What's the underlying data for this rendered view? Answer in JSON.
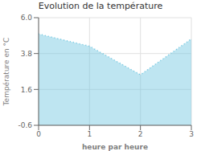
{
  "chart_data": {
    "type": "area",
    "title": "Evolution de la température",
    "xlabel": "heure par heure",
    "ylabel": "Température en °C",
    "x": [
      0,
      1,
      2,
      3
    ],
    "values": [
      5.0,
      4.25,
      2.5,
      4.7
    ],
    "xlim": [
      0,
      3
    ],
    "xticks": [
      0,
      1,
      2,
      3
    ],
    "ylim": [
      -0.6,
      6.0
    ],
    "yticks": [
      -0.6,
      1.6,
      3.8,
      {
        "value": 6.0,
        "label": "6.0"
      }
    ],
    "color": "#6ec6e0",
    "line_style": "dotted",
    "grid": true
  }
}
